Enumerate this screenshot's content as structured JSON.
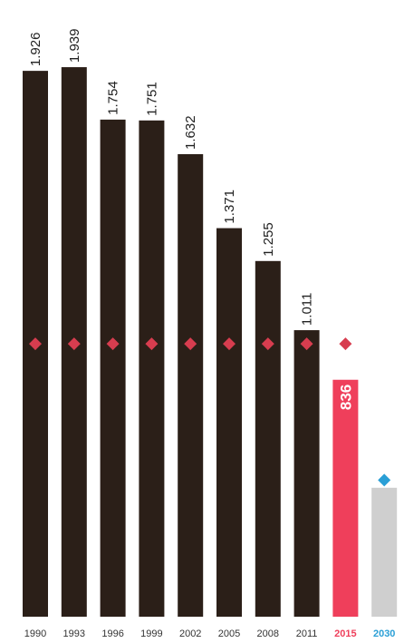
{
  "chart_data": {
    "type": "bar",
    "title": "",
    "xlabel": "",
    "ylabel": "",
    "ylim": [
      0,
      2000
    ],
    "grid": false,
    "categories": [
      "1990",
      "1993",
      "1996",
      "1999",
      "2002",
      "2005",
      "2008",
      "2011",
      "2015",
      "2030"
    ],
    "values": [
      1926,
      1939,
      1754,
      1751,
      1632,
      1371,
      1255,
      1011,
      836,
      455
    ],
    "value_labels": [
      "1.926",
      "1.939",
      "1.754",
      "1.751",
      "1.632",
      "1.371",
      "1.255",
      "1.011",
      "836",
      ""
    ],
    "target_markers": [
      {
        "category": "1990",
        "value": 963,
        "color": "#d73d4f"
      },
      {
        "category": "1993",
        "value": 963,
        "color": "#d73d4f"
      },
      {
        "category": "1996",
        "value": 963,
        "color": "#d73d4f"
      },
      {
        "category": "1999",
        "value": 963,
        "color": "#d73d4f"
      },
      {
        "category": "2002",
        "value": 963,
        "color": "#d73d4f"
      },
      {
        "category": "2005",
        "value": 963,
        "color": "#d73d4f"
      },
      {
        "category": "2008",
        "value": 963,
        "color": "#d73d4f"
      },
      {
        "category": "2011",
        "value": 963,
        "color": "#d73d4f"
      },
      {
        "category": "2015",
        "value": 963,
        "color": "#d73d4f"
      },
      {
        "category": "2030",
        "value": 482,
        "color": "#2a9fd6"
      }
    ],
    "colors": {
      "historic": "#2b1f18",
      "current": "#ef3f5b",
      "projection": "#cfcfcf",
      "year_default": "#333333",
      "year_current": "#ef3f5b",
      "year_projection": "#2a9fd6"
    }
  }
}
